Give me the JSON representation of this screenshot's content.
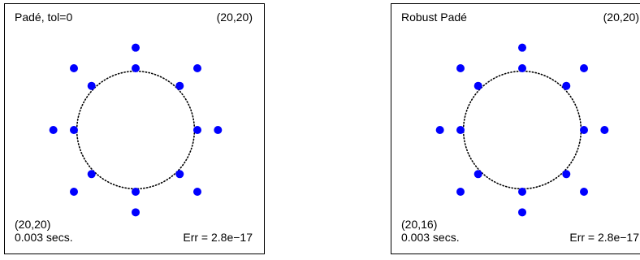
{
  "chart_data": [
    {
      "type": "scatter",
      "title": "Padé, tol=0",
      "top_right_label": "(20,20)",
      "bottom_left_label": "(20,20)",
      "time_label": "0.003 secs.",
      "error_label": "Err = 2.8e−17",
      "xlim": [
        -1.6,
        1.6
      ],
      "ylim": [
        -1.6,
        1.6
      ],
      "axes_visible": false,
      "grid": false,
      "marker_color": "#0000ff",
      "unit_circle": {
        "radius": 1.0,
        "style": "dotted",
        "color": "#000000"
      },
      "points": [
        {
          "x": 0,
          "y": 1.4
        },
        {
          "x": 0,
          "y": -1.4
        },
        {
          "x": 1.4,
          "y": 0
        },
        {
          "x": -1.4,
          "y": 0
        },
        {
          "x": 1.05,
          "y": 1.05
        },
        {
          "x": -1.05,
          "y": 1.05
        },
        {
          "x": 1.05,
          "y": -1.05
        },
        {
          "x": -1.05,
          "y": -1.05
        },
        {
          "x": 0,
          "y": 1.05
        },
        {
          "x": 0,
          "y": -1.05
        },
        {
          "x": 1.05,
          "y": 0
        },
        {
          "x": -1.05,
          "y": 0
        },
        {
          "x": 0.75,
          "y": 0.75
        },
        {
          "x": -0.75,
          "y": 0.75
        },
        {
          "x": 0.75,
          "y": -0.75
        },
        {
          "x": -0.75,
          "y": -0.75
        }
      ]
    },
    {
      "type": "scatter",
      "title": "Robust Padé",
      "top_right_label": "(20,20)",
      "bottom_left_label": "(20,16)",
      "time_label": "0.003 secs.",
      "error_label": "Err = 2.8e−17",
      "xlim": [
        -1.6,
        1.6
      ],
      "ylim": [
        -1.6,
        1.6
      ],
      "axes_visible": false,
      "grid": false,
      "marker_color": "#0000ff",
      "unit_circle": {
        "radius": 1.0,
        "style": "dotted",
        "color": "#000000"
      },
      "points": [
        {
          "x": 0,
          "y": 1.4
        },
        {
          "x": 0,
          "y": -1.4
        },
        {
          "x": 1.4,
          "y": 0
        },
        {
          "x": -1.4,
          "y": 0
        },
        {
          "x": 1.05,
          "y": 1.05
        },
        {
          "x": -1.05,
          "y": 1.05
        },
        {
          "x": 1.05,
          "y": -1.05
        },
        {
          "x": -1.05,
          "y": -1.05
        },
        {
          "x": 0,
          "y": 1.05
        },
        {
          "x": 0,
          "y": -1.05
        },
        {
          "x": 1.05,
          "y": 0
        },
        {
          "x": -1.05,
          "y": 0
        },
        {
          "x": 0.75,
          "y": 0.75
        },
        {
          "x": -0.75,
          "y": 0.75
        },
        {
          "x": 0.75,
          "y": -0.75
        },
        {
          "x": -0.75,
          "y": -0.75
        }
      ]
    }
  ]
}
